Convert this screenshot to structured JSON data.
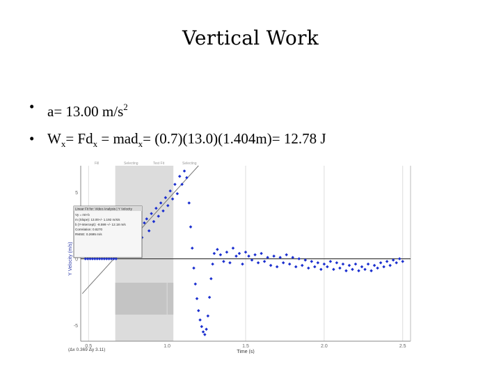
{
  "slide": {
    "title": "Vertical Work",
    "bullets": [
      {
        "lead": "a= 13.00 m/s",
        "sup": "2"
      },
      {
        "w": "W",
        "wsub": "x",
        "mid": "= Fd",
        "dsub": "x",
        "mid2": " = mad",
        "dsub2": "x",
        "tail": "= (0.7)(13.0)(1.404m)= 12.78 J"
      }
    ]
  },
  "colors": {
    "points": "#1b2fcf",
    "fit_line": "#777777",
    "selection": "#dcdcdc",
    "selection_dark": "#c4c4c4",
    "zero_line": "#444444",
    "grid": "#dddddd"
  },
  "chart_data": {
    "type": "scatter",
    "xlabel": "Time (s)",
    "ylabel": "Y Velocity (m/s)",
    "xlim": [
      0.45,
      2.55
    ],
    "ylim": [
      -6.2,
      7.0
    ],
    "xticks": [
      {
        "v": 0.5,
        "label": "0.5"
      },
      {
        "v": 1.0,
        "label": "1.0"
      },
      {
        "v": 1.5,
        "label": "1.5"
      },
      {
        "v": 2.0,
        "label": "2.0"
      },
      {
        "v": 2.5,
        "label": "2.5"
      }
    ],
    "yticks": [
      {
        "v": 5,
        "label": "5"
      },
      {
        "v": 0,
        "label": "0"
      },
      {
        "v": -5,
        "label": "-5"
      }
    ],
    "selection_x": [
      0.67,
      1.04
    ],
    "fit_line": {
      "slope": 13.0,
      "intercept": -8.6
    },
    "toolbar_labels": [
      "Fill",
      "Selecting",
      "Test Fit",
      "Selecting"
    ],
    "status_text": "(Δx 0.369 Δy 3.11)",
    "fit_box": {
      "title": "Linear Fit for: Video Analysis | Y Velocity",
      "lines": [
        "Vy = mt+b",
        "m (Slope): 13.00+/- 1.192 m/s/s",
        "b (Y-Intercept): -8.599 +/- 12.18 m/s",
        "Correlation: 0.8270",
        "RMSE: 0.2695 m/s"
      ]
    },
    "series": [
      {
        "points": [
          [
            0.48,
            0.0
          ],
          [
            0.495,
            0.0
          ],
          [
            0.51,
            0.0
          ],
          [
            0.525,
            0.0
          ],
          [
            0.54,
            0.0
          ],
          [
            0.555,
            0.0
          ],
          [
            0.57,
            0.0
          ],
          [
            0.585,
            0.0
          ],
          [
            0.6,
            0.0
          ],
          [
            0.615,
            0.0
          ],
          [
            0.63,
            0.0
          ],
          [
            0.645,
            0.0
          ],
          [
            0.66,
            0.0
          ],
          [
            0.675,
            0.0
          ],
          [
            0.69,
            0.2
          ],
          [
            0.705,
            0.5
          ],
          [
            0.72,
            0.8
          ],
          [
            0.735,
            1.0
          ],
          [
            0.75,
            0.6
          ],
          [
            0.765,
            1.5
          ],
          [
            0.78,
            1.1
          ],
          [
            0.795,
            2.0
          ],
          [
            0.81,
            1.2
          ],
          [
            0.825,
            2.4
          ],
          [
            0.84,
            1.6
          ],
          [
            0.855,
            2.7
          ],
          [
            0.87,
            3.0
          ],
          [
            0.885,
            2.1
          ],
          [
            0.9,
            3.4
          ],
          [
            0.915,
            2.8
          ],
          [
            0.93,
            3.8
          ],
          [
            0.945,
            3.2
          ],
          [
            0.96,
            4.2
          ],
          [
            0.975,
            3.6
          ],
          [
            0.99,
            4.6
          ],
          [
            1.005,
            4.0
          ],
          [
            1.02,
            5.1
          ],
          [
            1.035,
            4.5
          ],
          [
            1.05,
            5.6
          ],
          [
            1.065,
            4.9
          ],
          [
            1.08,
            6.2
          ],
          [
            1.095,
            5.6
          ],
          [
            1.11,
            6.6
          ],
          [
            1.125,
            6.1
          ],
          [
            1.14,
            4.2
          ],
          [
            1.15,
            2.4
          ],
          [
            1.16,
            0.8
          ],
          [
            1.17,
            -0.7
          ],
          [
            1.18,
            -1.9
          ],
          [
            1.19,
            -3.0
          ],
          [
            1.2,
            -3.9
          ],
          [
            1.21,
            -4.6
          ],
          [
            1.22,
            -5.1
          ],
          [
            1.23,
            -5.5
          ],
          [
            1.24,
            -5.7
          ],
          [
            1.25,
            -5.3
          ],
          [
            1.26,
            -4.3
          ],
          [
            1.27,
            -2.9
          ],
          [
            1.28,
            -1.5
          ],
          [
            1.29,
            -0.4
          ],
          [
            1.3,
            0.4
          ],
          [
            1.32,
            0.7
          ],
          [
            1.34,
            0.3
          ],
          [
            1.36,
            -0.2
          ],
          [
            1.38,
            0.5
          ],
          [
            1.4,
            -0.3
          ],
          [
            1.42,
            0.8
          ],
          [
            1.44,
            0.2
          ],
          [
            1.46,
            0.4
          ],
          [
            1.48,
            -0.4
          ],
          [
            1.5,
            0.5
          ],
          [
            1.52,
            0.2
          ],
          [
            1.54,
            -0.1
          ],
          [
            1.56,
            0.3
          ],
          [
            1.58,
            -0.3
          ],
          [
            1.6,
            0.4
          ],
          [
            1.62,
            -0.2
          ],
          [
            1.64,
            0.1
          ],
          [
            1.66,
            -0.5
          ],
          [
            1.68,
            0.2
          ],
          [
            1.7,
            -0.6
          ],
          [
            1.72,
            0.1
          ],
          [
            1.74,
            -0.3
          ],
          [
            1.76,
            0.3
          ],
          [
            1.78,
            -0.4
          ],
          [
            1.8,
            0.1
          ],
          [
            1.82,
            -0.6
          ],
          [
            1.84,
            0.0
          ],
          [
            1.86,
            -0.5
          ],
          [
            1.88,
            -0.1
          ],
          [
            1.9,
            -0.7
          ],
          [
            1.92,
            -0.2
          ],
          [
            1.94,
            -0.6
          ],
          [
            1.96,
            -0.3
          ],
          [
            1.98,
            -0.8
          ],
          [
            2.0,
            -0.4
          ],
          [
            2.02,
            -0.6
          ],
          [
            2.04,
            -0.2
          ],
          [
            2.06,
            -0.8
          ],
          [
            2.08,
            -0.3
          ],
          [
            2.1,
            -0.7
          ],
          [
            2.12,
            -0.4
          ],
          [
            2.14,
            -0.9
          ],
          [
            2.16,
            -0.5
          ],
          [
            2.18,
            -0.8
          ],
          [
            2.2,
            -0.4
          ],
          [
            2.22,
            -0.9
          ],
          [
            2.24,
            -0.6
          ],
          [
            2.26,
            -0.8
          ],
          [
            2.28,
            -0.4
          ],
          [
            2.3,
            -0.9
          ],
          [
            2.32,
            -0.5
          ],
          [
            2.34,
            -0.7
          ],
          [
            2.36,
            -0.3
          ],
          [
            2.38,
            -0.6
          ],
          [
            2.4,
            -0.2
          ],
          [
            2.42,
            -0.5
          ],
          [
            2.44,
            -0.1
          ],
          [
            2.46,
            -0.3
          ],
          [
            2.48,
            0.0
          ],
          [
            2.5,
            -0.2
          ]
        ]
      }
    ]
  }
}
